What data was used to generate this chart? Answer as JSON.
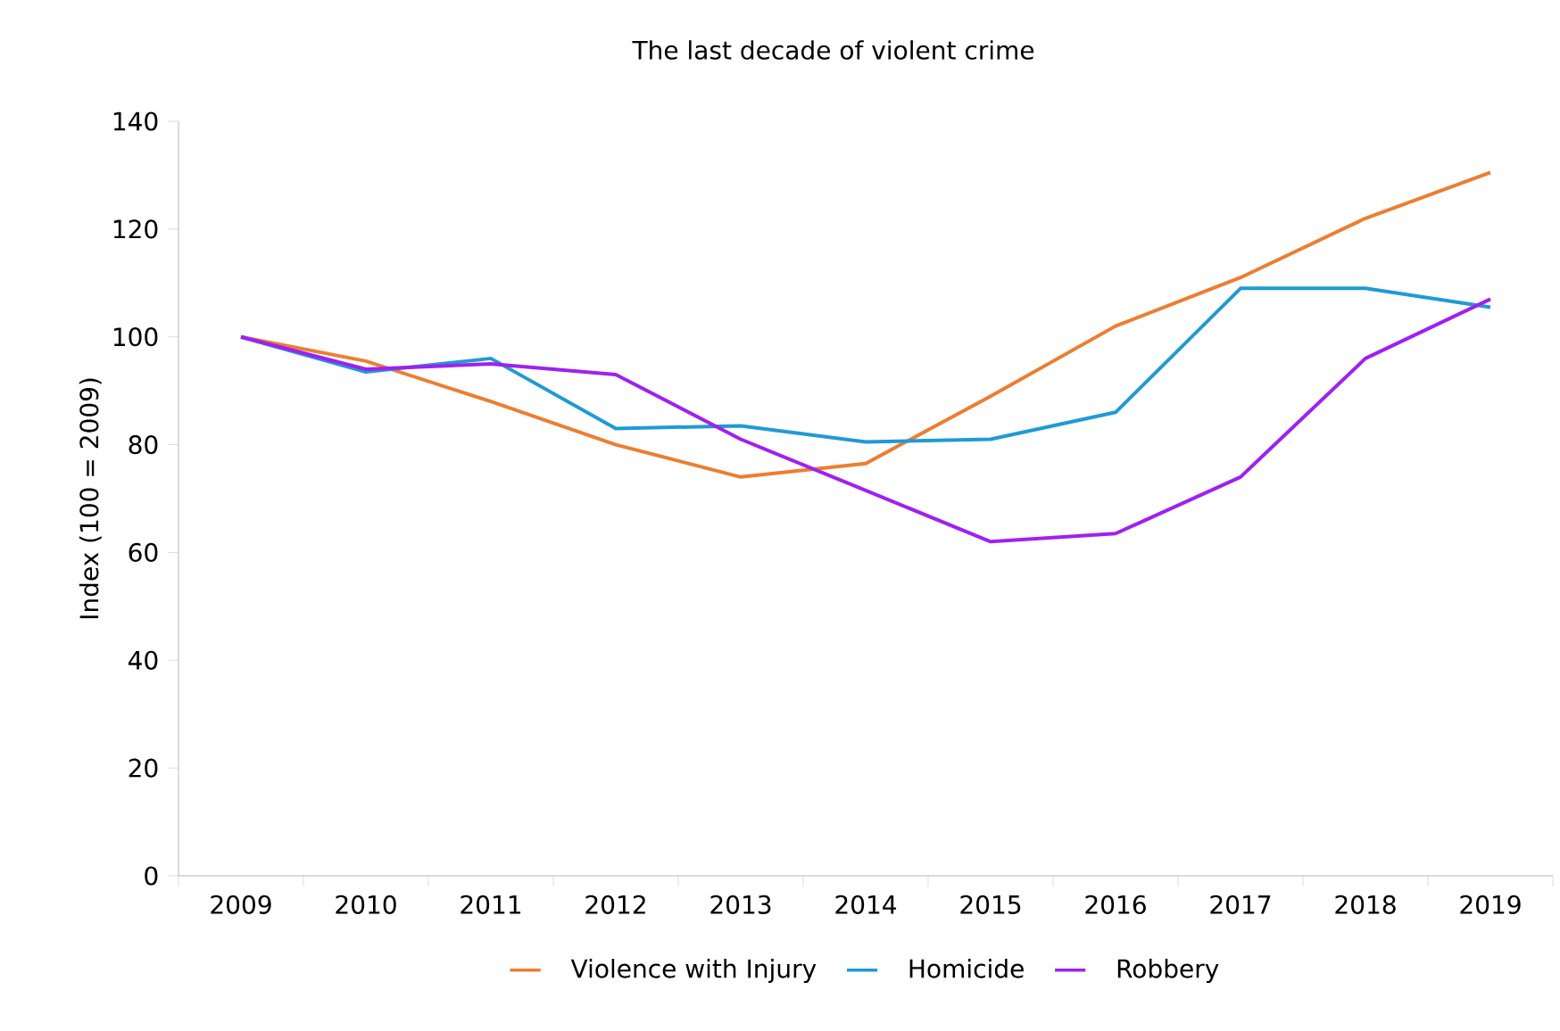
{
  "chart_data": {
    "type": "line",
    "title": "The last decade of violent crime",
    "ylabel": "Index (100 = 2009)",
    "categories": [
      "2009",
      "2010",
      "2011",
      "2012",
      "2013",
      "2014",
      "2015",
      "2016",
      "2017",
      "2018",
      "2019"
    ],
    "series": [
      {
        "name": "Violence with Injury",
        "color": "#ed7d31",
        "values": [
          100,
          95.5,
          88,
          80,
          74,
          76.5,
          89,
          102,
          111,
          122,
          130.5
        ]
      },
      {
        "name": "Homicide",
        "color": "#1f9ad6",
        "values": [
          100,
          93.5,
          96,
          83,
          83.5,
          80.5,
          81,
          86,
          109,
          109,
          105.5
        ]
      },
      {
        "name": "Robbery",
        "color": "#a020f0",
        "values": [
          100,
          94,
          95,
          93,
          81,
          71.5,
          62,
          63.5,
          74,
          96,
          107
        ]
      }
    ],
    "ylim": [
      0,
      140
    ],
    "yticks": [
      0,
      20,
      40,
      60,
      80,
      100,
      120,
      140
    ],
    "grid": false,
    "legend": "bottom",
    "marker": "none",
    "line_style": "solid"
  }
}
